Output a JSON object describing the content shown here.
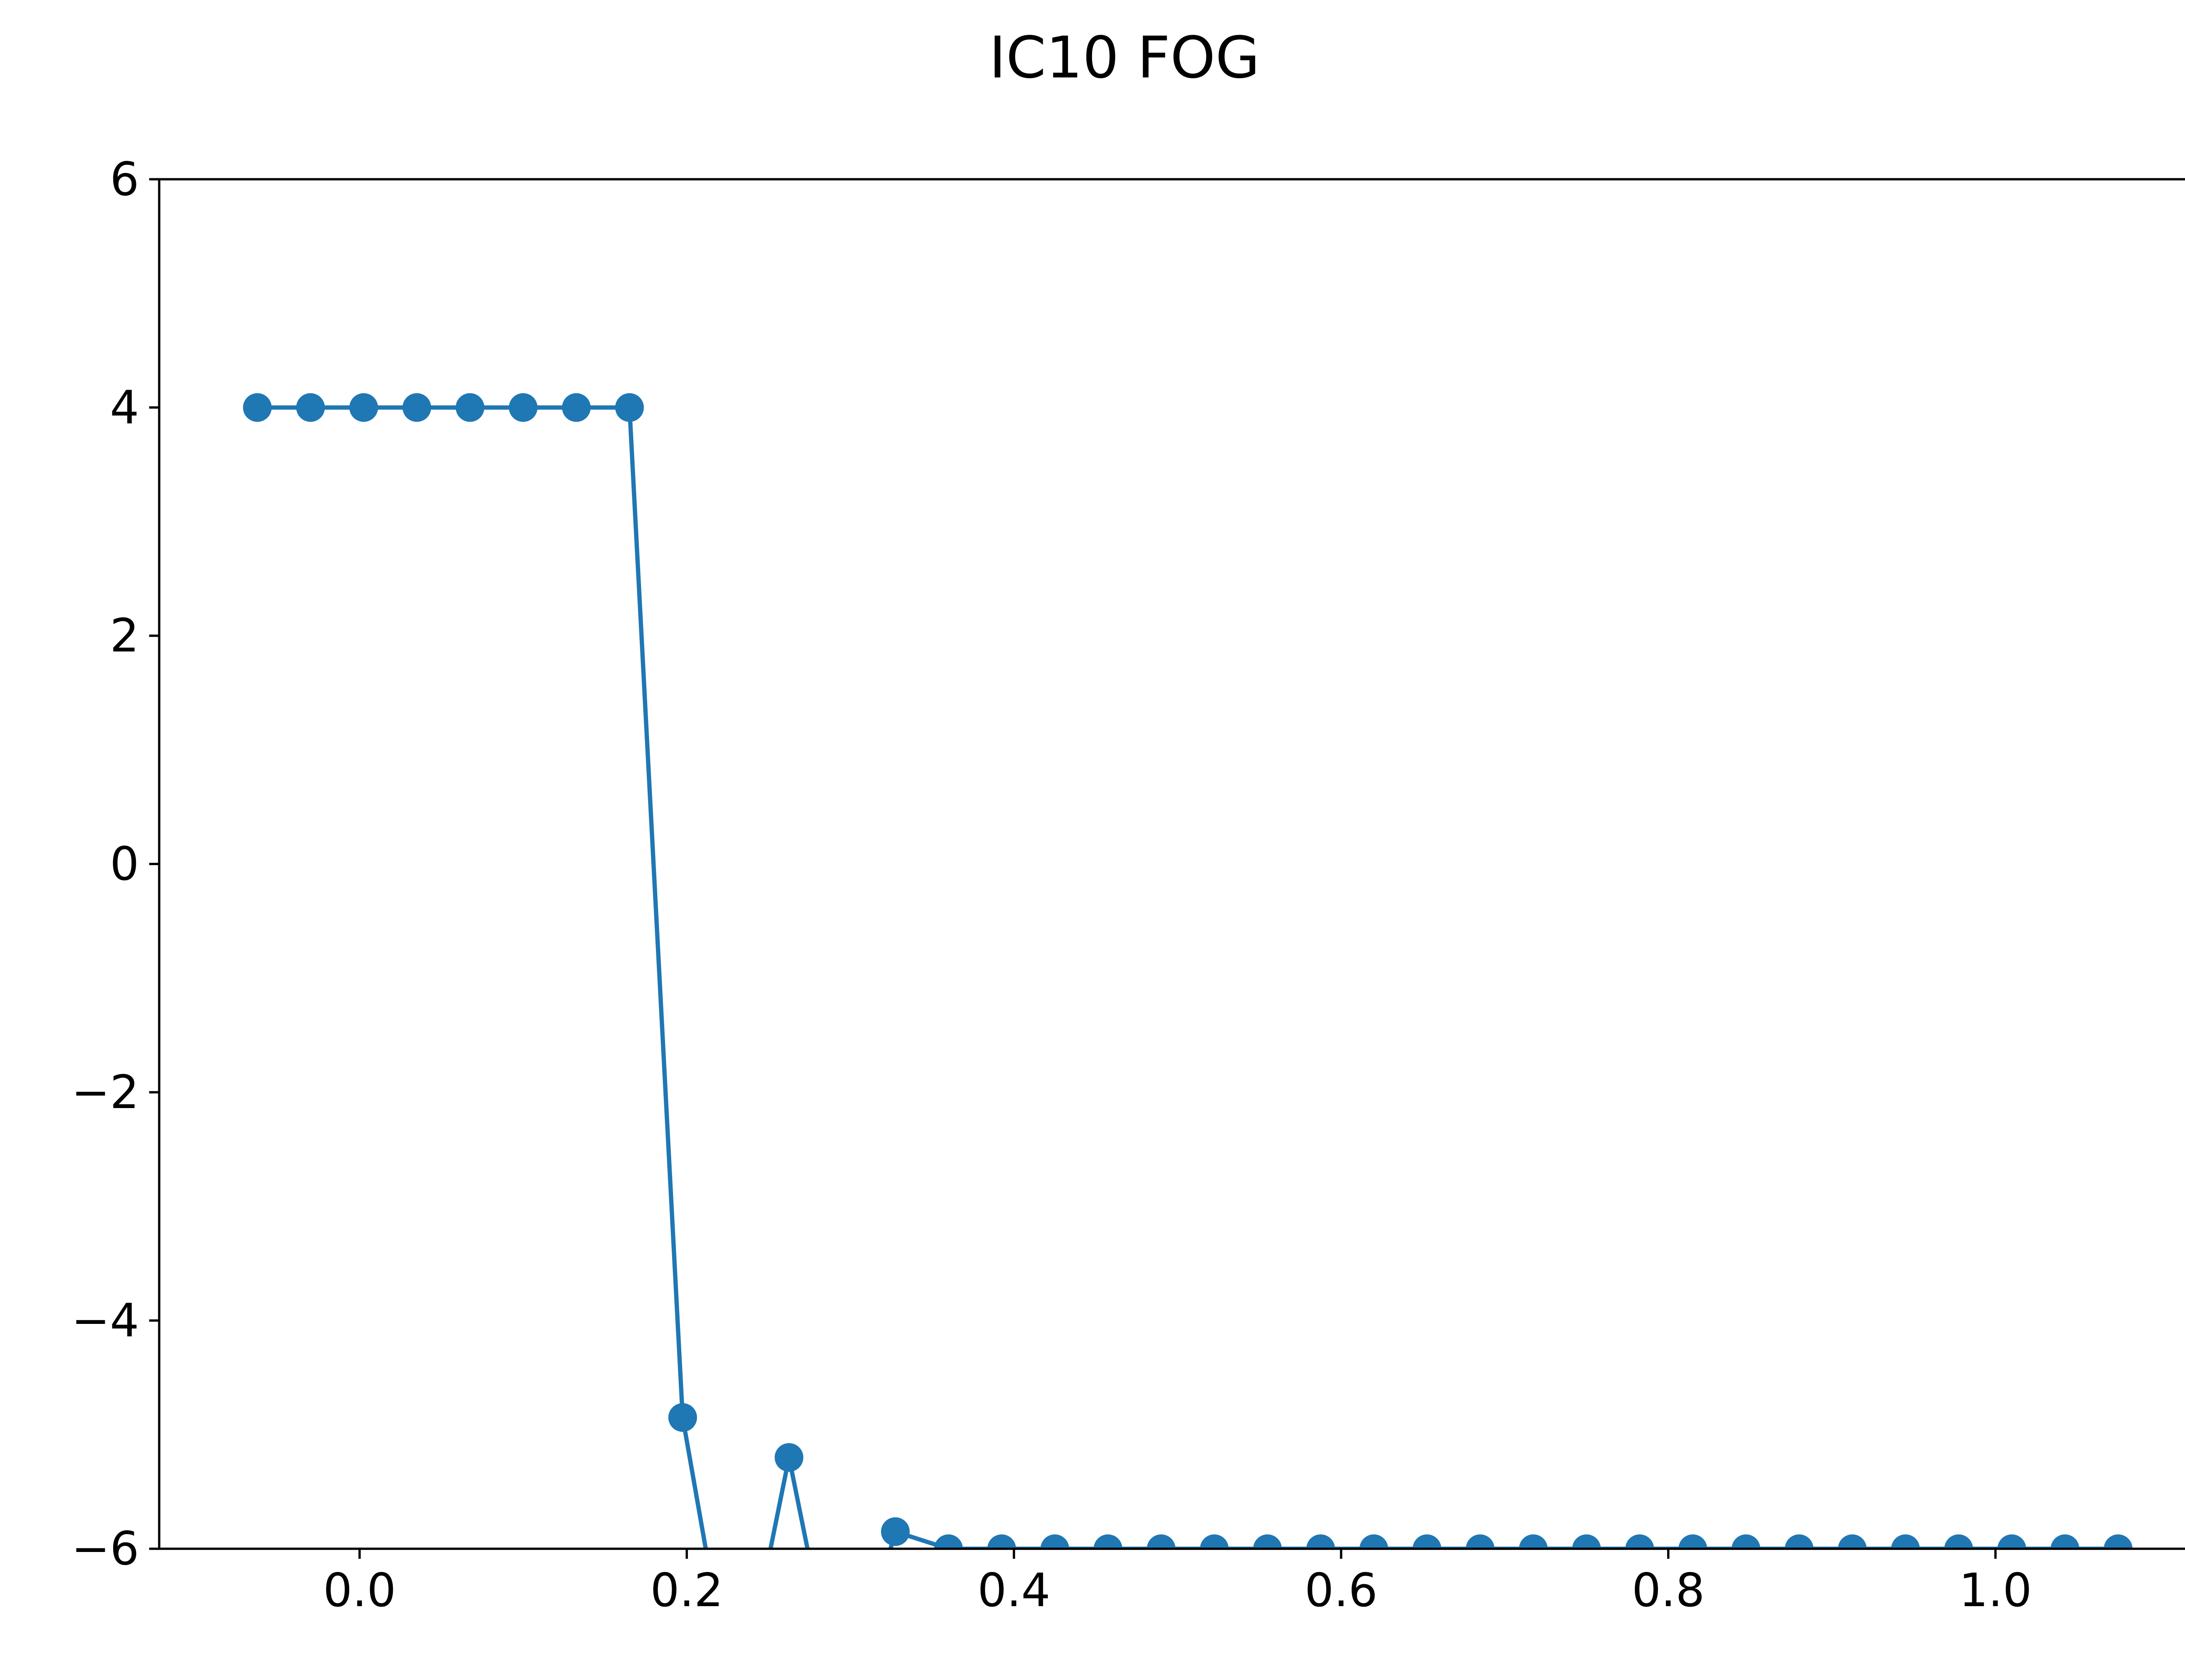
{
  "chart_data": {
    "type": "line",
    "title": "IC10 FOG",
    "xlabel": "",
    "ylabel": "",
    "xlim": [
      -0.1225,
      1.1225
    ],
    "ylim": [
      -6,
      6
    ],
    "xticks": [
      "0.0",
      "0.2",
      "0.4",
      "0.6",
      "0.8",
      "1.0"
    ],
    "xtick_values": [
      0.0,
      0.2,
      0.4,
      0.6,
      0.8,
      1.0
    ],
    "yticks": [
      "−6",
      "−4",
      "−2",
      "0",
      "2",
      "4",
      "6"
    ],
    "ytick_values": [
      -6,
      -4,
      -2,
      0,
      2,
      4,
      6
    ],
    "grid": false,
    "legend": "none",
    "series": [
      {
        "color": "#1f77b4",
        "marker": "circle",
        "x": [
          -0.0625,
          -0.03,
          0.0025,
          0.035,
          0.0675,
          0.1,
          0.1325,
          0.165,
          0.1975,
          0.23,
          0.2625,
          0.295,
          0.3275,
          0.36,
          0.3925,
          0.425,
          0.4575,
          0.49,
          0.5225,
          0.555,
          0.5875,
          0.62,
          0.6525,
          0.685,
          0.7175,
          0.75,
          0.7825,
          0.815,
          0.8475,
          0.88,
          0.9125,
          0.945,
          0.9775,
          1.01,
          1.0425,
          1.075
        ],
        "y": [
          4,
          4,
          4,
          4,
          4,
          4,
          4,
          4,
          -4.85,
          -7.5,
          -5.2,
          -7.5,
          -5.85,
          -6,
          -6,
          -6,
          -6,
          -6,
          -6,
          -6,
          -6,
          -6,
          -6,
          -6,
          -6,
          -6,
          -6,
          -6,
          -6,
          -6,
          -6,
          -6,
          -6,
          -6,
          -6,
          -6
        ]
      }
    ]
  }
}
